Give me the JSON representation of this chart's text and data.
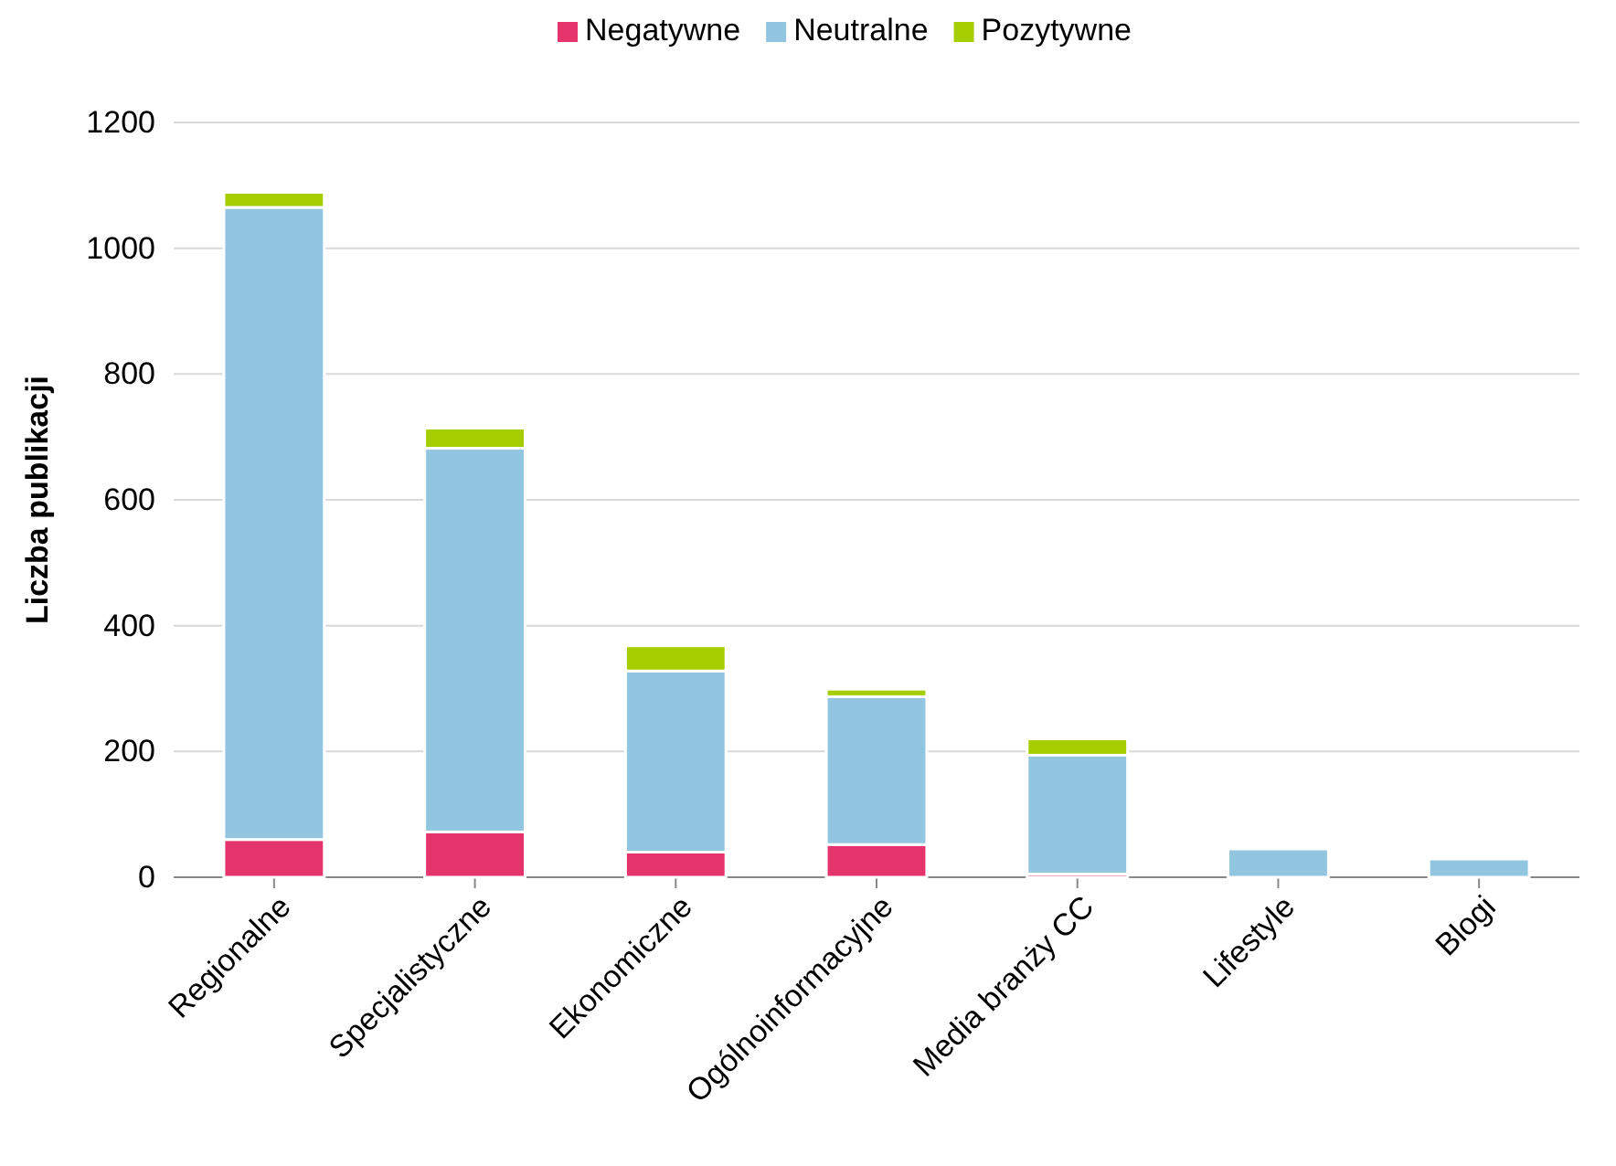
{
  "chart_data": {
    "type": "bar",
    "stacked": true,
    "ylabel": "Liczba publikacji",
    "categories": [
      "Regionalne",
      "Specjalistyczne",
      "Ekonomiczne",
      "Ogólnoinformacyjne",
      "Media branży CC",
      "Lifestyle",
      "Blogi"
    ],
    "series": [
      {
        "name": "Negatywne",
        "color": "#e5336b",
        "values": [
          60,
          72,
          40,
          52,
          5,
          null,
          null
        ]
      },
      {
        "name": "Neutralne",
        "color": "#92c5e0",
        "values": [
          1005,
          610,
          288,
          235,
          189,
          45,
          29
        ]
      },
      {
        "name": "Pozytywne",
        "color": "#a5cd00",
        "values": [
          24,
          32,
          40,
          12,
          26,
          0,
          0
        ]
      }
    ],
    "ylim": [
      0,
      1200
    ],
    "yticks": [
      0,
      200,
      400,
      600,
      800,
      1000,
      1200
    ],
    "grid": "y",
    "legend": "top"
  }
}
